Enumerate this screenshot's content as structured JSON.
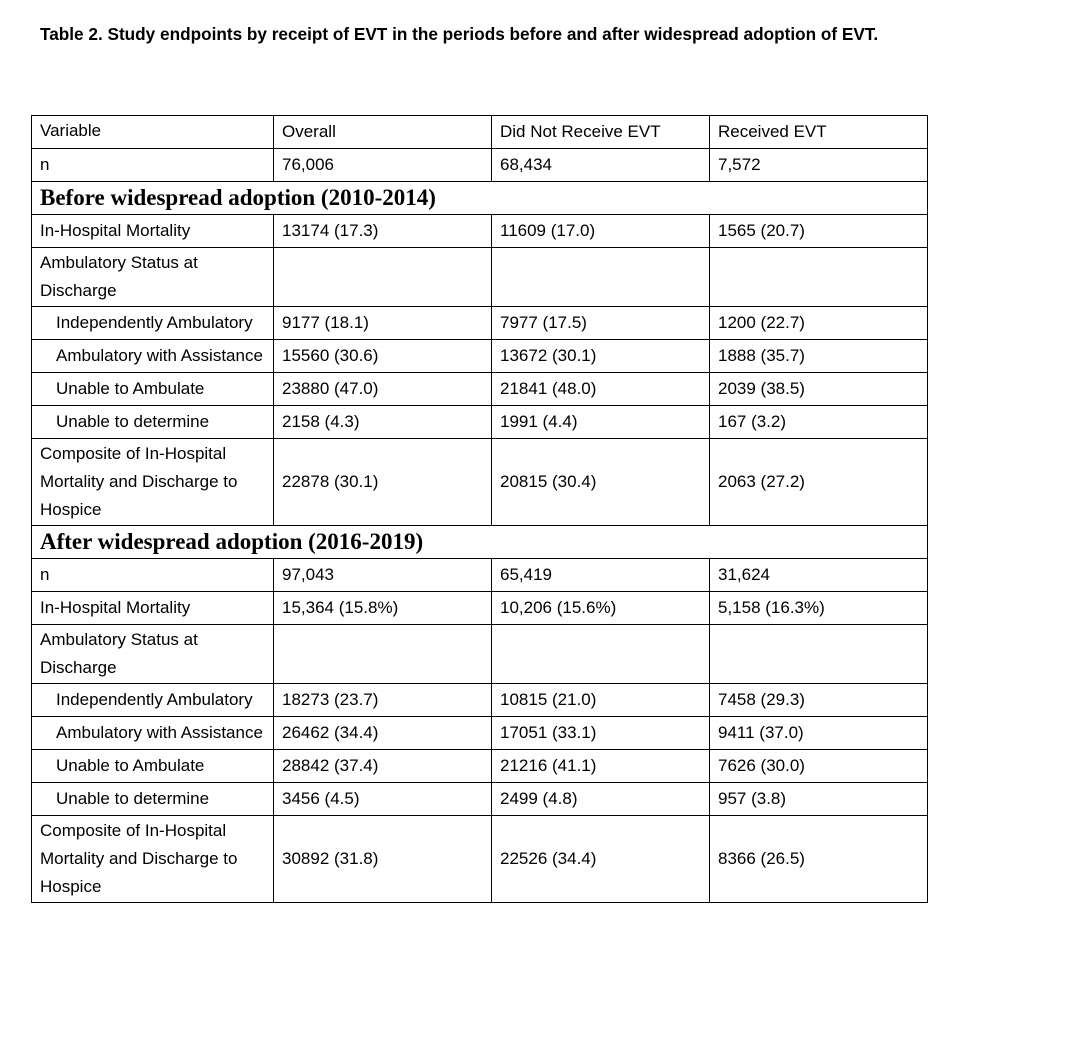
{
  "title": "Table 2. Study endpoints by receipt of EVT in the periods before and after widespread adoption of EVT.",
  "table": {
    "header": [
      "Variable",
      "Overall",
      "Did Not Receive EVT",
      "Received EVT"
    ],
    "rows": [
      [
        "n",
        "76,006",
        "68,434",
        "7,572"
      ]
    ],
    "sections": [
      {
        "title": "Before widespread adoption (2010-2014)",
        "rows": [
          [
            "In-Hospital Mortality",
            "13174 (17.3)",
            "11609 (17.0)",
            "1565 (20.7)"
          ],
          [
            "Ambulatory Status at Discharge"
          ],
          [
            "Independently Ambulatory",
            "9177 (18.1)",
            "7977 (17.5)",
            "1200 (22.7)"
          ],
          [
            "Ambulatory with Assistance",
            "15560 (30.6)",
            "13672 (30.1)",
            "1888 (35.7)"
          ],
          [
            "Unable to Ambulate",
            "23880 (47.0)",
            "21841 (48.0)",
            "2039 (38.5)"
          ],
          [
            "Unable to determine",
            "2158 (4.3)",
            "1991 (4.4)",
            "167 (3.2)"
          ],
          [
            "Composite of In-Hospital Mortality and Discharge to Hospice",
            "22878 (30.1)",
            "20815 (30.4)",
            "2063 (27.2)"
          ]
        ]
      },
      {
        "title": "After widespread adoption (2016-2019)",
        "rows": [
          [
            "n",
            "97,043",
            "65,419",
            "31,624"
          ],
          [
            "In-Hospital Mortality",
            "15,364 (15.8%)",
            "10,206 (15.6%)",
            "5,158 (16.3%)"
          ],
          [
            "Ambulatory Status at Discharge"
          ],
          [
            "Independently Ambulatory",
            "18273 (23.7)",
            "10815 (21.0)",
            "7458 (29.3)"
          ],
          [
            "Ambulatory with Assistance",
            "26462 (34.4)",
            "17051 (33.1)",
            "9411 (37.0)"
          ],
          [
            "Unable to Ambulate",
            "28842 (37.4)",
            "21216 (41.1)",
            "7626 (30.0)"
          ],
          [
            "Unable to determine",
            "3456 (4.5)",
            "2499 (4.8)",
            "957 (3.8)"
          ],
          [
            "Composite of In-Hospital Mortality and Discharge to Hospice",
            "30892 (31.8)",
            "22526 (34.4)",
            "8366 (26.5)"
          ]
        ]
      }
    ]
  }
}
